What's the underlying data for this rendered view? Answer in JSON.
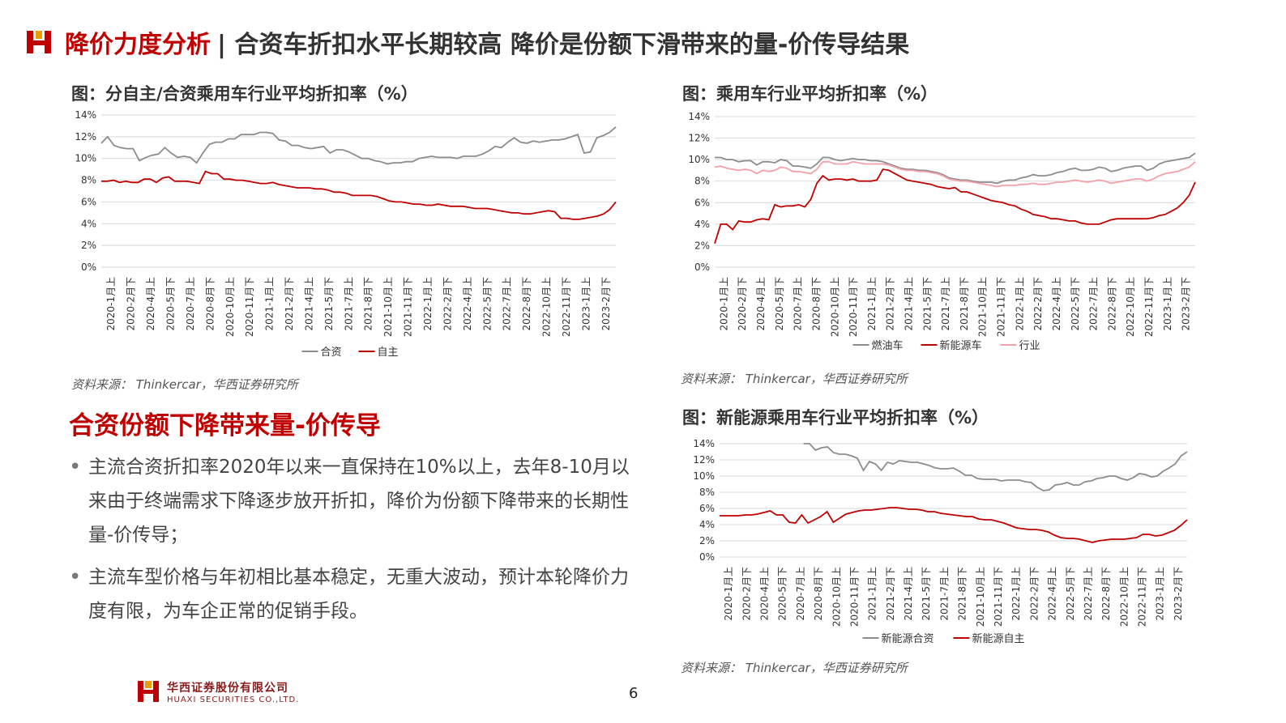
{
  "header": {
    "title_red": "降价力度分析",
    "title_dark": "| 合资车折扣水平长期较高 降价是份额下滑带来的量-价传导结果"
  },
  "colors": {
    "accent_red": "#c00000",
    "gray_line": "#8c8c8c",
    "red_line": "#c00000",
    "pink_line": "#f4a0a8"
  },
  "charts": [
    {
      "fig_title": "图：分自主/合资乘用车行业平均折扣率（%）",
      "source": "资料来源： Thinkercar，华西证券研究所"
    },
    {
      "fig_title": "图：乘用车行业平均折扣率（%）",
      "source": "资料来源： Thinkercar，华西证券研究所"
    },
    {
      "fig_title": "图：新能源乘用车行业平均折扣率（%）",
      "source": "资料来源： Thinkercar，华西证券研究所"
    }
  ],
  "chart_data": [
    {
      "type": "line",
      "title": "图：分自主/合资乘用车行业平均折扣率（%）",
      "ylim": [
        0,
        14
      ],
      "yticks": [
        "0%",
        "2%",
        "4%",
        "6%",
        "8%",
        "10%",
        "12%",
        "14%"
      ],
      "xtick_labels": [
        "2020-1月上",
        "2020-2月下",
        "2020-4月上",
        "2020-5月下",
        "2020-7月上",
        "2020-8月下",
        "2020-10月上",
        "2020-11月下",
        "2021-1月上",
        "2021-2月下",
        "2021-4月上",
        "2021-5月下",
        "2021-7月上",
        "2021-8月下",
        "2021-10月上",
        "2021-11月下",
        "2022-1月上",
        "2022-2月下",
        "2022-4月上",
        "2022-5月下",
        "2022-7月上",
        "2022-8月下",
        "2022-10月上",
        "2022-11月下",
        "2023-1月上",
        "2023-2月下"
      ],
      "legend_position": "bottom",
      "series": [
        {
          "name": "合资",
          "color": "#8c8c8c",
          "values": [
            11.4,
            12.0,
            11.2,
            11.0,
            10.9,
            10.9,
            9.8,
            10.1,
            10.3,
            10.4,
            11.0,
            10.5,
            10.1,
            10.2,
            10.1,
            9.6,
            10.5,
            11.3,
            11.5,
            11.5,
            11.8,
            11.8,
            12.2,
            12.2,
            12.2,
            12.4,
            12.4,
            12.3,
            11.7,
            11.6,
            11.2,
            11.2,
            11.0,
            10.9,
            11.0,
            11.1,
            10.5,
            10.8,
            10.8,
            10.6,
            10.3,
            10.0,
            10.0,
            9.8,
            9.7,
            9.5,
            9.6,
            9.6,
            9.7,
            9.7,
            10.0,
            10.1,
            10.2,
            10.1,
            10.1,
            10.1,
            10.0,
            10.2,
            10.2,
            10.2,
            10.4,
            10.7,
            11.1,
            11.0,
            11.5,
            11.9,
            11.5,
            11.4,
            11.6,
            11.5,
            11.6,
            11.7,
            11.7,
            11.8,
            12.0,
            12.2,
            10.5,
            10.6,
            11.9,
            12.1,
            12.4,
            12.9
          ]
        },
        {
          "name": "自主",
          "color": "#c00000",
          "values": [
            7.9,
            7.9,
            8.0,
            7.8,
            7.9,
            7.8,
            7.8,
            8.1,
            8.1,
            7.8,
            8.2,
            8.3,
            7.9,
            7.9,
            7.9,
            7.8,
            7.7,
            8.8,
            8.6,
            8.6,
            8.1,
            8.1,
            8.0,
            8.0,
            7.9,
            7.8,
            7.7,
            7.7,
            7.8,
            7.6,
            7.5,
            7.4,
            7.3,
            7.3,
            7.3,
            7.2,
            7.2,
            7.1,
            6.9,
            6.9,
            6.8,
            6.6,
            6.6,
            6.6,
            6.6,
            6.5,
            6.3,
            6.1,
            6.0,
            6.0,
            5.9,
            5.8,
            5.8,
            5.7,
            5.7,
            5.8,
            5.7,
            5.6,
            5.6,
            5.6,
            5.5,
            5.4,
            5.4,
            5.4,
            5.3,
            5.2,
            5.1,
            5.0,
            5.0,
            4.9,
            4.9,
            5.0,
            5.1,
            5.2,
            5.1,
            4.5,
            4.5,
            4.4,
            4.4,
            4.5,
            4.6,
            4.7,
            4.9,
            5.3,
            6.0
          ]
        }
      ]
    },
    {
      "type": "line",
      "title": "图：乘用车行业平均折扣率（%）",
      "ylim": [
        0,
        14
      ],
      "yticks": [
        "0%",
        "2%",
        "4%",
        "6%",
        "8%",
        "10%",
        "12%",
        "14%"
      ],
      "xtick_labels": [
        "2020-1月上",
        "2020-2月下",
        "2020-4月上",
        "2020-5月下",
        "2020-7月上",
        "2020-8月下",
        "2020-10月上",
        "2020-11月下",
        "2021-1月上",
        "2021-2月下",
        "2021-4月上",
        "2021-5月下",
        "2021-7月上",
        "2021-8月下",
        "2021-10月上",
        "2021-11月下",
        "2022-1月上",
        "2022-2月下",
        "2022-4月上",
        "2022-5月下",
        "2022-7月上",
        "2022-8月下",
        "2022-10月上",
        "2022-11月下",
        "2023-1月上",
        "2023-2月下"
      ],
      "legend_position": "bottom",
      "series": [
        {
          "name": "燃油车",
          "color": "#8c8c8c",
          "values": [
            10.2,
            10.2,
            10.0,
            10.0,
            9.8,
            9.9,
            9.9,
            9.5,
            9.8,
            9.8,
            9.7,
            10.0,
            9.9,
            9.4,
            9.4,
            9.3,
            9.2,
            9.6,
            10.2,
            10.2,
            10.0,
            9.9,
            10.0,
            10.1,
            10.0,
            10.0,
            9.9,
            9.9,
            9.8,
            9.6,
            9.4,
            9.2,
            9.1,
            9.1,
            9.0,
            9.0,
            8.9,
            8.8,
            8.6,
            8.3,
            8.2,
            8.1,
            8.1,
            8.0,
            7.9,
            7.9,
            7.9,
            7.8,
            8.0,
            8.1,
            8.1,
            8.3,
            8.4,
            8.6,
            8.5,
            8.5,
            8.6,
            8.8,
            8.9,
            9.1,
            9.2,
            9.0,
            9.0,
            9.1,
            9.3,
            9.2,
            8.9,
            9.0,
            9.2,
            9.3,
            9.4,
            9.4,
            9.0,
            9.2,
            9.6,
            9.8,
            9.9,
            10.0,
            10.1,
            10.2,
            10.6
          ]
        },
        {
          "name": "新能源车",
          "color": "#c00000",
          "values": [
            2.2,
            4.0,
            4.0,
            3.5,
            4.3,
            4.2,
            4.2,
            4.4,
            4.5,
            4.4,
            5.8,
            5.6,
            5.7,
            5.7,
            5.8,
            5.6,
            6.3,
            7.8,
            8.5,
            8.1,
            8.2,
            8.2,
            8.1,
            8.2,
            8.0,
            8.0,
            8.0,
            8.1,
            9.1,
            9.0,
            8.7,
            8.4,
            8.1,
            8.0,
            7.9,
            7.8,
            7.7,
            7.5,
            7.4,
            7.3,
            7.4,
            7.0,
            7.0,
            6.8,
            6.6,
            6.4,
            6.2,
            6.1,
            6.0,
            5.8,
            5.7,
            5.4,
            5.2,
            4.9,
            4.8,
            4.7,
            4.5,
            4.5,
            4.4,
            4.3,
            4.3,
            4.1,
            4.0,
            4.0,
            4.0,
            4.2,
            4.4,
            4.5,
            4.5,
            4.5,
            4.5,
            4.5,
            4.5,
            4.6,
            4.8,
            4.9,
            5.2,
            5.5,
            6.0,
            6.7,
            7.9
          ]
        },
        {
          "name": "行业",
          "color": "#f4a0a8",
          "values": [
            9.3,
            9.4,
            9.2,
            9.1,
            9.0,
            9.1,
            9.0,
            8.7,
            9.0,
            8.9,
            9.0,
            9.3,
            9.2,
            8.9,
            8.9,
            8.8,
            8.7,
            9.1,
            9.8,
            9.8,
            9.6,
            9.6,
            9.6,
            9.8,
            9.7,
            9.6,
            9.6,
            9.6,
            9.6,
            9.5,
            9.3,
            9.1,
            9.0,
            9.0,
            8.9,
            8.9,
            8.8,
            8.7,
            8.5,
            8.2,
            8.1,
            8.0,
            8.0,
            7.9,
            7.8,
            7.7,
            7.6,
            7.5,
            7.6,
            7.6,
            7.6,
            7.7,
            7.7,
            7.8,
            7.7,
            7.7,
            7.8,
            7.9,
            7.9,
            8.0,
            8.1,
            8.0,
            7.9,
            8.0,
            8.1,
            8.0,
            7.8,
            7.9,
            8.0,
            8.1,
            8.2,
            8.2,
            8.0,
            8.2,
            8.5,
            8.7,
            8.8,
            8.9,
            9.1,
            9.3,
            9.8
          ]
        }
      ]
    },
    {
      "type": "line",
      "title": "图：新能源乘用车行业平均折扣率（%）",
      "ylim": [
        0,
        14
      ],
      "yticks": [
        "0%",
        "2%",
        "4%",
        "6%",
        "8%",
        "10%",
        "12%",
        "14%"
      ],
      "xtick_labels": [
        "2020-1月上",
        "2020-2月下",
        "2020-4月上",
        "2020-5月下",
        "2020-7月上",
        "2020-8月下",
        "2020-10月上",
        "2020-11月下",
        "2021-1月上",
        "2021-2月下",
        "2021-4月上",
        "2021-5月下",
        "2021-7月上",
        "2021-8月下",
        "2021-10月上",
        "2021-11月下",
        "2022-1月上",
        "2022-2月下",
        "2022-4月上",
        "2022-5月下",
        "2022-7月上",
        "2022-8月下",
        "2022-10月上",
        "2022-11月下",
        "2023-1月上",
        "2023-2月下"
      ],
      "legend_position": "bottom",
      "series": [
        {
          "name": "新能源合资",
          "color": "#8c8c8c",
          "values": [
            null,
            null,
            null,
            null,
            null,
            null,
            null,
            null,
            null,
            null,
            null,
            null,
            null,
            null,
            14.0,
            14.0,
            13.2,
            13.5,
            13.6,
            12.9,
            12.7,
            12.7,
            12.5,
            12.2,
            10.7,
            11.8,
            11.5,
            10.7,
            11.7,
            11.5,
            11.9,
            11.8,
            11.7,
            11.7,
            11.5,
            11.3,
            11.0,
            10.9,
            10.9,
            11.0,
            10.6,
            10.1,
            10.1,
            9.7,
            9.6,
            9.6,
            9.6,
            9.4,
            9.5,
            9.5,
            9.5,
            9.3,
            9.2,
            8.6,
            8.2,
            8.3,
            8.9,
            9.0,
            9.2,
            8.9,
            8.9,
            9.3,
            9.4,
            9.7,
            9.8,
            10.0,
            10.0,
            9.7,
            9.5,
            9.8,
            10.3,
            10.2,
            9.9,
            10.0,
            10.6,
            11.0,
            11.5,
            12.5,
            13.0
          ]
        },
        {
          "name": "新能源自主",
          "color": "#c00000",
          "values": [
            5.1,
            5.1,
            5.1,
            5.1,
            5.2,
            5.2,
            5.3,
            5.5,
            5.7,
            5.2,
            5.2,
            4.3,
            4.2,
            5.2,
            4.2,
            4.6,
            5.0,
            5.6,
            4.3,
            4.8,
            5.3,
            5.5,
            5.7,
            5.8,
            5.8,
            5.9,
            6.0,
            6.1,
            6.1,
            6.0,
            5.9,
            5.9,
            5.8,
            5.6,
            5.6,
            5.4,
            5.3,
            5.2,
            5.1,
            5.0,
            5.0,
            4.7,
            4.6,
            4.6,
            4.4,
            4.2,
            3.9,
            3.6,
            3.5,
            3.4,
            3.4,
            3.3,
            3.1,
            2.7,
            2.4,
            2.3,
            2.3,
            2.2,
            2.0,
            1.8,
            2.0,
            2.1,
            2.2,
            2.2,
            2.2,
            2.3,
            2.4,
            2.8,
            2.8,
            2.6,
            2.7,
            3.0,
            3.3,
            3.9,
            4.6
          ]
        }
      ]
    }
  ],
  "section": {
    "heading": "合资份额下降带来量-价传导",
    "bullets": [
      "主流合资折扣率2020年以来一直保持在10%以上，去年8-10月以来由于终端需求下降逐步放开折扣，降价为份额下降带来的长期性量-价传导；",
      "主流车型价格与年初相比基本稳定，无重大波动，预计本轮降价力度有限，为车企正常的促销手段。"
    ]
  },
  "footer": {
    "company_cn": "华西证券股份有限公司",
    "company_en": "HUAXI SECURITIES CO.,LTD.",
    "page_number": "6"
  }
}
